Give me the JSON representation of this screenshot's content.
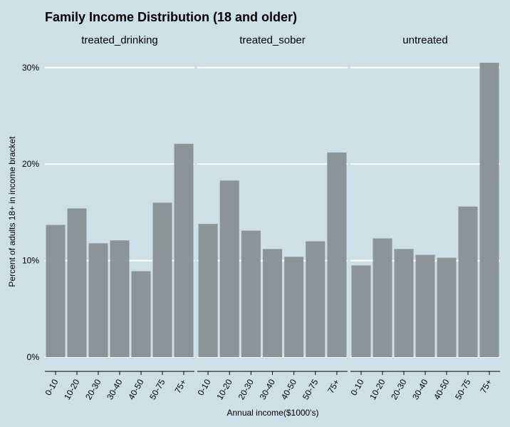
{
  "chart_data": {
    "type": "bar",
    "title": "Family Income Distribution (18 and older)",
    "xlabel": "Annual income($1000's)",
    "ylabel": "Percent of adults 18+ in income bracket",
    "categories": [
      "0-10",
      "10-20",
      "20-30",
      "30-40",
      "40-50",
      "50-75",
      "75+"
    ],
    "ylim": [
      0,
      30.5
    ],
    "yticks": [
      0,
      10,
      20,
      30
    ],
    "ytick_labels": [
      "0%",
      "10%",
      "20%",
      "30%"
    ],
    "grid": "horizontal",
    "facets": [
      {
        "name": "treated_drinking",
        "values": [
          13.7,
          15.4,
          11.8,
          12.1,
          8.9,
          16.0,
          22.1
        ]
      },
      {
        "name": "treated_sober",
        "values": [
          13.8,
          18.3,
          13.1,
          11.2,
          10.4,
          12.0,
          21.2
        ]
      },
      {
        "name": "untreated",
        "values": [
          9.5,
          12.3,
          11.2,
          10.6,
          10.3,
          15.6,
          30.5
        ]
      }
    ],
    "colors": {
      "background": "#cde0e7",
      "bar": "#8a9599",
      "grid": "#ffffff",
      "axis": "#000000"
    }
  }
}
